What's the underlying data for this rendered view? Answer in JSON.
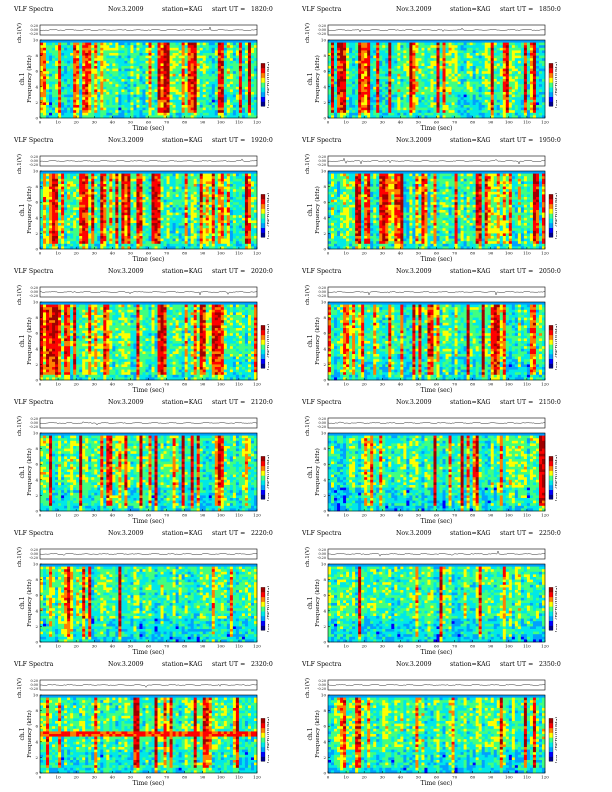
{
  "chart_data": {
    "type": "heatmap",
    "panel_common": {
      "title_left": "VLF Spectra",
      "date": "Nov.3.2009",
      "station": "station=KAG",
      "ut_prefix": "start  UT  =",
      "line_ylabel": "ch.1(V)",
      "line_yticks": [
        "0.20",
        "0.00",
        "-0.20"
      ],
      "ch_label": "ch.1",
      "ylabel": "Frequency  (kHz)",
      "xlabel": "Time  (sec)",
      "colorbar_label": "log₁₀(PSD)(V²/Hz)",
      "x_ticks": [
        0,
        10,
        20,
        30,
        40,
        50,
        60,
        70,
        80,
        90,
        100,
        110,
        120
      ],
      "y_ticks": [
        0,
        2,
        4,
        6,
        8,
        10
      ],
      "xlim": [
        0,
        120
      ],
      "ylim": [
        0,
        10
      ],
      "colorbar_scale": [
        "#00008a",
        "#0000ff",
        "#00a0ff",
        "#00e8e8",
        "#40ff80",
        "#ffff00",
        "#ff8000",
        "#ff0000",
        "#a00000"
      ]
    },
    "panels": [
      {
        "start_ut": "1820:0",
        "activity": 0.65,
        "band_khz": null
      },
      {
        "start_ut": "1850:0",
        "activity": 0.55,
        "band_khz": null
      },
      {
        "start_ut": "1920:0",
        "activity": 0.75,
        "band_khz": null
      },
      {
        "start_ut": "1950:0",
        "activity": 0.7,
        "band_khz": null
      },
      {
        "start_ut": "2020:0",
        "activity": 0.7,
        "band_khz": null
      },
      {
        "start_ut": "2050:0",
        "activity": 0.55,
        "band_khz": null
      },
      {
        "start_ut": "2120:0",
        "activity": 0.4,
        "band_khz": null
      },
      {
        "start_ut": "2150:0",
        "activity": 0.35,
        "band_khz": null
      },
      {
        "start_ut": "2220:0",
        "activity": 0.3,
        "band_khz": null
      },
      {
        "start_ut": "2250:0",
        "activity": 0.3,
        "band_khz": null
      },
      {
        "start_ut": "2320:0",
        "activity": 0.45,
        "band_khz": 5
      },
      {
        "start_ut": "2350:0",
        "activity": 0.35,
        "band_khz": null
      }
    ]
  }
}
